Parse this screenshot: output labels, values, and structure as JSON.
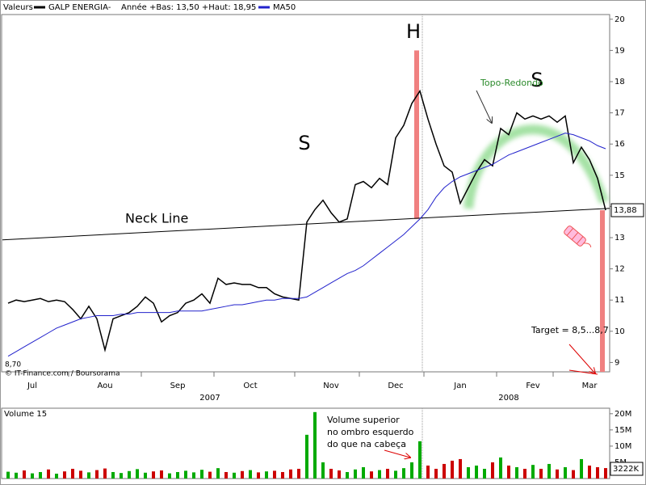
{
  "chart_data": [
    {
      "type": "line",
      "header": "Valeurs",
      "subtitle": "Année +Bas: 13,50 +Haut: 18,95",
      "source": "© IT-Finance.com / Boursorama",
      "low_label": "8,70",
      "categories": [
        null,
        null,
        null,
        "Jul",
        null,
        null,
        null,
        null,
        null,
        null,
        null,
        null,
        "Aou",
        null,
        null,
        null,
        null,
        null,
        null,
        null,
        null,
        "Sep",
        null,
        null,
        null,
        null,
        null,
        null,
        null,
        null,
        "Oct",
        null,
        null,
        null,
        null,
        null,
        null,
        null,
        null,
        null,
        "Nov",
        null,
        null,
        null,
        null,
        null,
        null,
        null,
        "Dec",
        null,
        null,
        null,
        null,
        null,
        null,
        null,
        "Jan",
        null,
        null,
        null,
        null,
        null,
        null,
        null,
        null,
        "Fev",
        null,
        null,
        null,
        null,
        null,
        null,
        "Mar",
        null,
        null
      ],
      "year_labels": [
        {
          "value": 25,
          "label": "2007"
        },
        {
          "value": 62,
          "label": "2008"
        }
      ],
      "series": [
        {
          "name": "GALP ENERGIA-",
          "color": "#000000",
          "values": [
            10.9,
            11.0,
            10.95,
            11.0,
            11.05,
            10.95,
            11.0,
            10.95,
            10.7,
            10.4,
            10.8,
            10.4,
            9.4,
            10.4,
            10.5,
            10.6,
            10.8,
            11.1,
            10.9,
            10.3,
            10.5,
            10.6,
            10.9,
            11.0,
            11.2,
            10.9,
            11.7,
            11.5,
            11.55,
            11.5,
            11.5,
            11.4,
            11.4,
            11.2,
            11.1,
            11.05,
            11.0,
            13.5,
            13.9,
            14.2,
            13.8,
            13.5,
            13.6,
            14.7,
            14.8,
            14.6,
            14.9,
            14.7,
            16.2,
            16.6,
            17.3,
            17.7,
            16.8,
            16.0,
            15.3,
            15.1,
            14.1,
            14.6,
            15.1,
            15.5,
            15.3,
            16.5,
            16.3,
            17.0,
            16.8,
            16.9,
            16.8,
            16.9,
            16.7,
            16.9,
            15.4,
            15.9,
            15.5,
            14.9,
            13.88
          ],
          "value_labels": [
            null,
            null,
            null,
            null,
            null,
            null,
            null,
            null,
            null,
            null,
            null,
            null,
            null,
            null,
            null,
            null,
            null,
            null,
            null,
            null,
            null,
            null,
            null,
            null,
            null,
            null,
            null,
            null,
            null,
            null,
            null,
            null,
            null,
            null,
            null,
            null,
            null,
            null,
            null,
            null,
            null,
            null,
            null,
            null,
            null,
            null,
            null,
            null,
            null,
            null,
            null,
            null,
            null,
            null,
            null,
            null,
            null,
            null,
            null,
            null,
            null,
            null,
            null,
            null,
            null,
            null,
            null,
            null,
            null,
            null,
            null,
            null,
            null,
            null,
            "13,88"
          ]
        },
        {
          "name": "MA50",
          "color": "#2222cc",
          "values": [
            9.2,
            9.35,
            9.5,
            9.65,
            9.8,
            9.95,
            10.1,
            10.2,
            10.3,
            10.4,
            10.45,
            10.5,
            10.5,
            10.5,
            10.55,
            10.55,
            10.6,
            10.6,
            10.6,
            10.6,
            10.6,
            10.65,
            10.65,
            10.65,
            10.65,
            10.7,
            10.75,
            10.8,
            10.85,
            10.85,
            10.9,
            10.95,
            11.0,
            11.0,
            11.05,
            11.05,
            11.05,
            11.1,
            11.25,
            11.4,
            11.55,
            11.7,
            11.85,
            11.95,
            12.1,
            12.3,
            12.5,
            12.7,
            12.9,
            13.1,
            13.35,
            13.6,
            13.9,
            14.3,
            14.6,
            14.8,
            14.95,
            15.05,
            15.15,
            15.25,
            15.35,
            15.5,
            15.65,
            15.75,
            15.85,
            15.95,
            16.05,
            16.15,
            16.25,
            16.35,
            16.3,
            16.2,
            16.1,
            15.95,
            15.85
          ]
        }
      ],
      "ylim": [
        8.7,
        20.15
      ],
      "yticks": [
        9,
        10,
        11,
        12,
        13,
        14,
        15,
        16,
        17,
        18,
        19,
        20
      ],
      "grid": false,
      "neck_line": {
        "label": "Neck Line",
        "values": [
          12.93,
          13.94
        ]
      },
      "measures": [
        {
          "at": 50.6,
          "values": [
            13.6,
            19.0
          ]
        },
        {
          "at": 73.6,
          "values": [
            8.7,
            13.88
          ]
        }
      ],
      "annotations": [
        "H",
        "S",
        "S",
        "Topo-Redondo",
        "Target = 8,5...8,7"
      ]
    },
    {
      "type": "bar",
      "title": "Volume 15",
      "up_color": "#00aa00",
      "down_color": "#cc0000",
      "values": [
        2.1,
        1.8,
        2.5,
        1.6,
        2.0,
        2.8,
        1.5,
        2.2,
        3.0,
        2.4,
        1.9,
        2.6,
        3.1,
        2.0,
        1.7,
        2.3,
        2.9,
        1.8,
        2.2,
        2.5,
        1.6,
        2.0,
        2.4,
        1.9,
        2.7,
        2.1,
        3.2,
        2.0,
        1.8,
        2.3,
        2.6,
        1.9,
        2.2,
        2.4,
        2.0,
        2.8,
        3.0,
        13.5,
        20.5,
        5.0,
        3.0,
        2.5,
        2.0,
        2.8,
        3.5,
        2.2,
        2.6,
        3.0,
        2.4,
        3.2,
        5.0,
        11.5,
        4.0,
        3.0,
        4.5,
        5.5,
        6.0,
        3.5,
        4.0,
        3.0,
        5.0,
        6.5,
        4.0,
        3.5,
        3.0,
        4.2,
        3.0,
        4.5,
        2.8,
        3.5,
        2.6,
        6.0,
        4.0,
        3.5,
        3.222
      ],
      "value_labels": [
        null,
        null,
        null,
        null,
        null,
        null,
        null,
        null,
        null,
        null,
        null,
        null,
        null,
        null,
        null,
        null,
        null,
        null,
        null,
        null,
        null,
        null,
        null,
        null,
        null,
        null,
        null,
        null,
        null,
        null,
        null,
        null,
        null,
        null,
        null,
        null,
        null,
        null,
        null,
        null,
        null,
        null,
        null,
        null,
        null,
        null,
        null,
        null,
        null,
        null,
        null,
        null,
        null,
        null,
        null,
        null,
        null,
        null,
        null,
        null,
        null,
        null,
        null,
        null,
        null,
        null,
        null,
        null,
        null,
        null,
        null,
        null,
        null,
        null,
        "3222K"
      ],
      "ylim": [
        0,
        21.7
      ],
      "yticks": [
        {
          "value": 5,
          "label": "5M"
        },
        {
          "value": 10,
          "label": "10M"
        },
        {
          "value": 15,
          "label": "15M"
        },
        {
          "value": 20,
          "label": "20M"
        }
      ],
      "annotation_lines": [
        "Volume superior",
        "no ombro esquerdo",
        "do que na cabeça"
      ]
    }
  ]
}
